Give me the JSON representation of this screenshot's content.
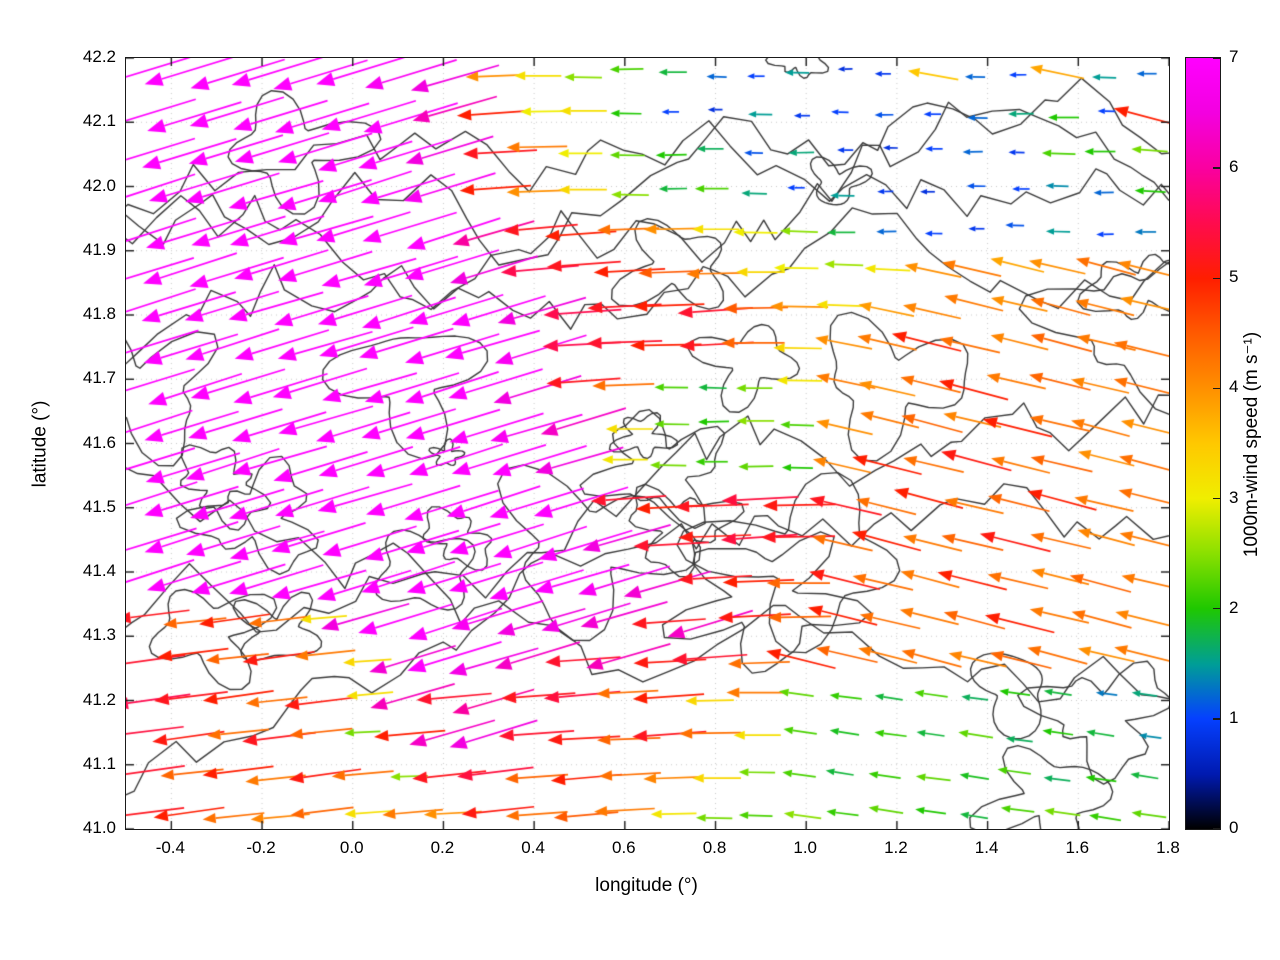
{
  "figure": {
    "xlabel": "longitude (°)",
    "ylabel": "latitude (°)",
    "cblabel": "1000m-wind speed (m s⁻¹)",
    "background": "#ffffff",
    "plot_border_color": "#1a1a1a",
    "grid_line_color": "#c8c8c8"
  },
  "chart_data": {
    "type": "quiver",
    "title": "",
    "xlabel": "longitude (°)",
    "ylabel": "latitude (°)",
    "xlim": [
      -0.5,
      1.8
    ],
    "ylim": [
      41.0,
      42.2
    ],
    "x_tick_values": [
      -0.4,
      -0.2,
      0.0,
      0.2,
      0.4,
      0.6,
      0.8,
      1.0,
      1.2,
      1.4,
      1.6,
      1.8
    ],
    "x_tick_labels": [
      "-0.4",
      "-0.2",
      "0.0",
      "0.2",
      "0.4",
      "0.6",
      "0.8",
      "1.0",
      "1.2",
      "1.4",
      "1.6",
      "1.8"
    ],
    "y_tick_values": [
      41.0,
      41.1,
      41.2,
      41.3,
      41.4,
      41.5,
      41.6,
      41.7,
      41.8,
      41.9,
      42.0,
      42.1,
      42.2
    ],
    "y_tick_labels": [
      "41.0",
      "41.1",
      "41.2",
      "41.3",
      "41.4",
      "41.5",
      "41.6",
      "41.7",
      "41.8",
      "41.9",
      "42.0",
      "42.1",
      "42.2"
    ],
    "grid_on": true,
    "colorbar": {
      "label": "1000m-wind speed (m s⁻¹)",
      "min": 0,
      "max": 7,
      "tick_values": [
        0,
        1,
        2,
        3,
        4,
        5,
        6,
        7
      ],
      "tick_labels": [
        "0",
        "1",
        "2",
        "3",
        "4",
        "5",
        "6",
        "7"
      ],
      "stops": [
        [
          0,
          "#000000"
        ],
        [
          0.5,
          "#001ab0"
        ],
        [
          1,
          "#0540ff"
        ],
        [
          1.5,
          "#009e96"
        ],
        [
          2,
          "#1fc800"
        ],
        [
          2.5,
          "#8ae000"
        ],
        [
          3,
          "#f0ee00"
        ],
        [
          3.5,
          "#ffc800"
        ],
        [
          4,
          "#ff9000"
        ],
        [
          4.5,
          "#ff5a00"
        ],
        [
          5,
          "#ff1e00"
        ],
        [
          5.5,
          "#ff0b4e"
        ],
        [
          6,
          "#fa00a0"
        ],
        [
          6.5,
          "#f300e0"
        ],
        [
          7,
          "#ff00ff"
        ]
      ]
    },
    "grid": {
      "cols": 24,
      "rows": 20,
      "lon_start": -0.45,
      "lon_end": 1.752,
      "lat_start": 42.175,
      "lat_end": 41.024,
      "order": "rows north to south"
    },
    "speeds": [
      [
        7,
        7,
        7,
        7,
        7,
        7,
        6.8,
        6.5,
        4,
        3.2,
        2.5,
        2.2,
        1.8,
        1.2,
        1,
        1.5,
        0.8,
        0.9,
        3.5,
        1.2,
        1,
        3.8,
        1.5,
        1.2
      ],
      [
        7,
        7,
        7,
        7,
        7,
        7,
        7,
        6.2,
        5,
        3,
        3.2,
        2,
        1,
        0.8,
        1.5,
        0.9,
        1,
        1.1,
        1,
        1.2,
        1.6,
        2,
        1,
        5
      ],
      [
        7,
        7,
        7,
        7,
        7,
        7,
        7,
        6.5,
        5.2,
        4.2,
        3,
        2.3,
        2,
        1.7,
        1.1,
        1.6,
        0.9,
        0.8,
        1,
        1.2,
        0.9,
        2.2,
        2,
        2.4
      ],
      [
        7,
        7,
        7,
        7,
        7,
        7,
        7,
        6.8,
        5,
        4,
        3.3,
        2.5,
        1.8,
        2.2,
        1.6,
        1,
        1.5,
        0.9,
        0.8,
        1.1,
        1,
        1.4,
        1.2,
        2
      ],
      [
        7,
        7,
        7,
        7,
        7,
        7,
        7,
        7,
        6,
        5.2,
        5,
        4.3,
        4,
        3.2,
        3,
        2.5,
        1.8,
        1.2,
        1,
        0.9,
        1.1,
        1.5,
        1,
        1.3
      ],
      [
        7,
        7,
        7,
        7,
        7,
        7,
        7,
        7,
        6.5,
        5.5,
        5.2,
        5,
        4.5,
        4.2,
        3.3,
        3,
        2.6,
        3.1,
        4,
        4.2,
        3.8,
        4,
        4.3,
        4.1
      ],
      [
        7,
        7,
        7,
        7,
        7,
        7,
        7,
        7,
        7,
        6.5,
        5.5,
        5.2,
        5,
        5.3,
        4.5,
        4,
        3.2,
        3.9,
        4.1,
        4.2,
        4,
        4.3,
        4.2,
        4
      ],
      [
        7,
        7,
        7,
        7,
        7,
        7,
        7,
        7,
        7,
        6.8,
        5.5,
        5.3,
        5,
        5.2,
        4.4,
        3.3,
        4,
        4.2,
        5,
        4.3,
        4.1,
        4.4,
        4.2,
        4.3
      ],
      [
        7,
        7,
        7,
        7,
        7,
        7,
        7,
        7,
        7,
        6.5,
        5.2,
        4.3,
        2.2,
        1.8,
        2.4,
        3.1,
        4.2,
        4,
        4.3,
        5,
        4.2,
        4.4,
        4.1,
        4.3
      ],
      [
        7,
        7,
        7,
        7,
        7,
        7,
        7,
        7,
        7,
        6.8,
        6.3,
        3.2,
        2.3,
        2,
        2.5,
        2.2,
        4,
        4.2,
        4.4,
        4.1,
        5,
        4.3,
        4.2,
        4
      ],
      [
        7,
        7,
        7,
        7,
        7,
        7,
        7,
        7,
        7,
        7,
        6.5,
        3.1,
        2.4,
        2.1,
        2.3,
        2,
        4.1,
        5,
        4.3,
        5.1,
        4.2,
        4.4,
        4,
        4.3
      ],
      [
        7,
        7,
        7,
        7,
        7,
        7,
        7,
        7,
        7,
        7,
        7,
        5.3,
        5,
        5.2,
        5.4,
        5.1,
        5.2,
        4.3,
        5,
        4.2,
        4.4,
        5,
        4.2,
        4.3
      ],
      [
        7,
        7,
        7,
        7,
        7,
        7,
        7,
        7,
        7,
        7,
        7,
        6.5,
        5.3,
        5.1,
        5.4,
        5.2,
        4.3,
        5,
        4.2,
        4.4,
        5.1,
        4.3,
        4.1,
        4.2
      ],
      [
        7,
        7,
        7,
        7,
        7,
        7,
        7,
        7,
        7,
        7,
        7,
        6.8,
        6.4,
        5.2,
        5,
        4.4,
        5.1,
        4.3,
        4.2,
        5,
        4.3,
        4.1,
        4.4,
        4.2
      ],
      [
        5.2,
        4.4,
        5,
        4.3,
        3.2,
        6.5,
        7,
        7,
        6.8,
        6.5,
        6.6,
        6.4,
        5.2,
        6.3,
        5.1,
        4.4,
        5,
        4.3,
        4.2,
        4.4,
        5,
        4.2,
        4.3,
        4.1
      ],
      [
        5.3,
        5,
        4.4,
        5.1,
        4.2,
        3.3,
        6.4,
        7,
        6.6,
        6.3,
        5.3,
        6.2,
        5.1,
        5.3,
        4.3,
        5,
        4.4,
        4.2,
        4.3,
        4.1,
        4.4,
        4.3,
        4,
        4.2
      ],
      [
        5.5,
        5.2,
        5,
        4.3,
        5.1,
        3.2,
        6.2,
        5.3,
        6,
        5.2,
        5.4,
        4.3,
        5,
        3.3,
        4.2,
        2.3,
        2.1,
        1.8,
        2.2,
        1.7,
        2,
        1.8,
        1.3,
        1.6
      ],
      [
        5.4,
        5.1,
        4.3,
        5.2,
        4.4,
        2.4,
        5,
        6.3,
        6.5,
        5.3,
        5.1,
        4.4,
        5.2,
        4.3,
        3.2,
        2.2,
        1.9,
        2.1,
        1.8,
        2.3,
        1.7,
        2,
        1.8,
        1.4
      ],
      [
        5.3,
        4.4,
        5,
        4.2,
        5.1,
        4.3,
        2.5,
        5.2,
        5.4,
        4.4,
        5,
        4.3,
        4.1,
        3.3,
        2.4,
        2.2,
        1.8,
        2.1,
        2.3,
        1.9,
        2.2,
        1.7,
        2,
        1.8
      ],
      [
        5.2,
        5,
        4.3,
        4.1,
        4.4,
        3.2,
        4.2,
        4,
        5.1,
        4.3,
        4.5,
        4.2,
        3.1,
        2.4,
        2.2,
        2.5,
        2.1,
        2.3,
        2,
        1.8,
        2.2,
        2.4,
        2.1,
        2.3
      ]
    ],
    "directions_deg": [
      [
        197,
        197,
        197,
        197,
        197,
        197,
        197,
        196,
        182,
        180,
        179,
        181,
        180,
        178,
        180,
        179,
        181,
        180,
        170,
        179,
        181,
        168,
        178,
        180
      ],
      [
        197,
        197,
        197,
        197,
        197,
        197,
        197,
        196,
        184,
        181,
        180,
        179,
        180,
        181,
        179,
        180,
        178,
        181,
        180,
        179,
        181,
        180,
        179,
        165
      ],
      [
        197,
        197,
        197,
        197,
        197,
        197,
        197,
        197,
        183,
        181,
        180,
        179,
        181,
        180,
        179,
        181,
        180,
        179,
        180,
        181,
        179,
        178,
        180,
        176
      ],
      [
        198,
        197,
        197,
        196,
        197,
        198,
        197,
        197,
        184,
        182,
        180,
        179,
        181,
        180,
        178,
        180,
        179,
        181,
        180,
        179,
        180,
        178,
        181,
        177
      ],
      [
        198,
        197,
        197,
        197,
        196,
        197,
        197,
        198,
        196,
        185,
        184,
        182,
        181,
        180,
        179,
        178,
        180,
        181,
        179,
        180,
        178,
        179,
        181,
        180
      ],
      [
        197,
        198,
        197,
        197,
        197,
        196,
        197,
        197,
        197,
        185,
        184,
        183,
        182,
        181,
        180,
        179,
        178,
        177,
        168,
        167,
        166,
        167,
        165,
        166
      ],
      [
        198,
        197,
        197,
        196,
        197,
        197,
        198,
        197,
        197,
        196,
        184,
        183,
        182,
        184,
        181,
        179,
        178,
        168,
        167,
        166,
        167,
        165,
        166,
        167
      ],
      [
        197,
        197,
        198,
        197,
        196,
        197,
        197,
        197,
        196,
        197,
        183,
        182,
        181,
        183,
        180,
        179,
        169,
        167,
        166,
        167,
        166,
        165,
        167,
        166
      ],
      [
        197,
        198,
        197,
        197,
        197,
        196,
        197,
        198,
        197,
        197,
        184,
        182,
        179,
        178,
        180,
        179,
        168,
        167,
        166,
        165,
        167,
        166,
        167,
        166
      ],
      [
        198,
        197,
        197,
        197,
        196,
        197,
        197,
        197,
        197,
        196,
        197,
        180,
        179,
        181,
        180,
        178,
        167,
        166,
        165,
        167,
        166,
        167,
        165,
        166
      ],
      [
        197,
        197,
        198,
        196,
        197,
        197,
        197,
        198,
        197,
        197,
        196,
        180,
        179,
        180,
        181,
        179,
        167,
        166,
        167,
        165,
        166,
        167,
        166,
        165
      ],
      [
        198,
        197,
        197,
        197,
        197,
        196,
        197,
        197,
        198,
        197,
        197,
        184,
        183,
        182,
        183,
        181,
        167,
        166,
        165,
        167,
        166,
        165,
        167,
        166
      ],
      [
        197,
        198,
        197,
        196,
        197,
        197,
        197,
        197,
        197,
        198,
        197,
        196,
        183,
        182,
        184,
        181,
        167,
        165,
        166,
        167,
        166,
        167,
        165,
        166
      ],
      [
        198,
        197,
        197,
        197,
        196,
        197,
        198,
        197,
        197,
        197,
        196,
        197,
        196,
        183,
        182,
        180,
        166,
        167,
        165,
        166,
        167,
        166,
        165,
        167
      ],
      [
        187,
        186,
        188,
        187,
        185,
        196,
        197,
        198,
        197,
        196,
        197,
        196,
        184,
        197,
        183,
        181,
        166,
        167,
        166,
        165,
        166,
        167,
        165,
        166
      ],
      [
        188,
        187,
        186,
        188,
        186,
        184,
        197,
        197,
        196,
        197,
        184,
        196,
        183,
        184,
        182,
        166,
        167,
        166,
        165,
        167,
        166,
        165,
        167,
        166
      ],
      [
        188,
        187,
        188,
        186,
        187,
        185,
        196,
        185,
        196,
        184,
        185,
        183,
        184,
        181,
        180,
        172,
        173,
        171,
        172,
        173,
        172,
        171,
        173,
        172
      ],
      [
        187,
        188,
        186,
        187,
        186,
        183,
        185,
        196,
        197,
        184,
        183,
        182,
        184,
        181,
        180,
        172,
        171,
        173,
        172,
        171,
        173,
        172,
        171,
        172
      ],
      [
        188,
        186,
        187,
        186,
        188,
        185,
        182,
        186,
        187,
        184,
        185,
        183,
        182,
        180,
        179,
        172,
        171,
        172,
        173,
        171,
        172,
        173,
        172,
        171
      ],
      [
        187,
        188,
        186,
        185,
        187,
        184,
        185,
        183,
        186,
        184,
        185,
        183,
        181,
        179,
        178,
        172,
        173,
        171,
        172,
        171,
        173,
        172,
        171,
        172
      ]
    ],
    "contour_style": {
      "color": "#3a3a3a",
      "width": 1.4,
      "seed": 11,
      "blob_count": 26,
      "open_count": 7,
      "description": "terrain elevation contour outlines"
    }
  }
}
